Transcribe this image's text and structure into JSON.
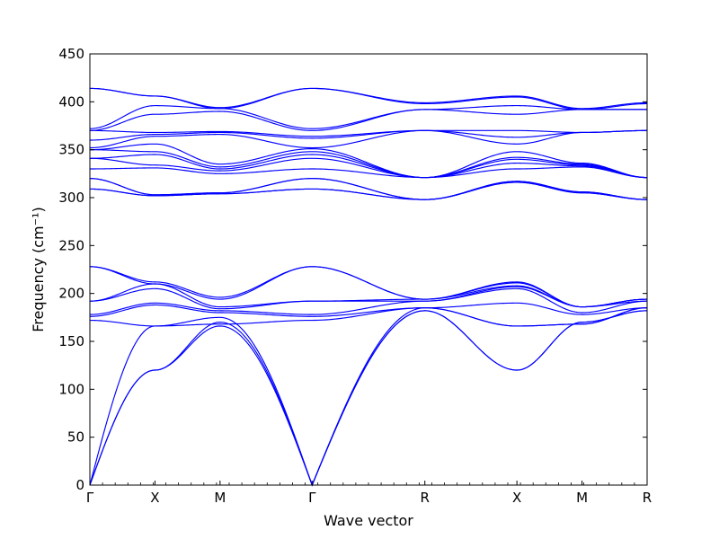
{
  "chart_data": {
    "type": "line",
    "title": "",
    "xlabel": "Wave vector",
    "ylabel": "Frequency (cm⁻¹)",
    "ylim": [
      0,
      450
    ],
    "yticks": [
      0,
      50,
      100,
      150,
      200,
      250,
      300,
      350,
      400,
      450
    ],
    "grid": false,
    "line_color": "#0000ff",
    "path_segments": [
      {
        "from": "Γ",
        "to": "X"
      },
      {
        "from": "X",
        "to": "M"
      },
      {
        "from": "M",
        "to": "Γ"
      },
      {
        "from": "Γ",
        "to": "R"
      },
      {
        "from": "R",
        "to": "X"
      },
      {
        "from": "X",
        "to": "M"
      },
      {
        "from": "M",
        "to": "R"
      }
    ],
    "high_symmetry_points": [
      {
        "label": "Γ",
        "position": 0.0
      },
      {
        "label": "X",
        "position": 1.0
      },
      {
        "label": "M",
        "position": 2.0
      },
      {
        "label": "Γ",
        "position": 3.414
      },
      {
        "label": "R",
        "position": 5.146
      },
      {
        "label": "X",
        "position": 6.56
      },
      {
        "label": "M",
        "position": 7.56
      },
      {
        "label": "R",
        "position": 8.56
      }
    ],
    "x_range": [
      0,
      8.56
    ],
    "series": [
      {
        "values": [
          0,
          120,
          166,
          0,
          182,
          120,
          170,
          182
        ]
      },
      {
        "values": [
          0,
          120,
          170,
          0,
          182,
          120,
          170,
          182
        ]
      },
      {
        "values": [
          0,
          166,
          175,
          0,
          185,
          166,
          168,
          185
        ]
      },
      {
        "values": [
          172,
          166,
          168,
          172,
          185,
          166,
          168,
          185
        ]
      },
      {
        "values": [
          176,
          188,
          180,
          176,
          185,
          190,
          178,
          185
        ]
      },
      {
        "values": [
          178,
          190,
          182,
          178,
          192,
          205,
          180,
          192
        ]
      },
      {
        "values": [
          192,
          205,
          184,
          192,
          192,
          207,
          186,
          192
        ]
      },
      {
        "values": [
          192,
          210,
          186,
          192,
          194,
          208,
          186,
          194
        ]
      },
      {
        "values": [
          228,
          210,
          194,
          228,
          194,
          211,
          186,
          194
        ]
      },
      {
        "values": [
          228,
          212,
          196,
          228,
          194,
          212,
          186,
          194
        ]
      },
      {
        "values": [
          309,
          302,
          304,
          309,
          298,
          316,
          305,
          298
        ]
      },
      {
        "values": [
          309,
          302,
          304,
          309,
          298,
          316,
          305,
          298
        ]
      },
      {
        "values": [
          320,
          303,
          305,
          320,
          298,
          317,
          306,
          298
        ]
      },
      {
        "values": [
          320,
          303,
          305,
          320,
          298,
          317,
          306,
          298
        ]
      },
      {
        "values": [
          330,
          331,
          325,
          330,
          321,
          330,
          332,
          321
        ]
      },
      {
        "values": [
          341,
          334,
          328,
          341,
          321,
          336,
          333,
          321
        ]
      },
      {
        "values": [
          341,
          345,
          330,
          345,
          321,
          340,
          334,
          321
        ]
      },
      {
        "values": [
          350,
          348,
          332,
          348,
          321,
          342,
          335,
          321
        ]
      },
      {
        "values": [
          350,
          356,
          335,
          351,
          321,
          348,
          336,
          321
        ]
      },
      {
        "values": [
          352,
          364,
          366,
          352,
          370,
          356,
          368,
          370
        ]
      },
      {
        "values": [
          360,
          366,
          368,
          362,
          370,
          363,
          368,
          370
        ]
      },
      {
        "values": [
          370,
          368,
          369,
          364,
          370,
          370,
          368,
          370
        ]
      },
      {
        "values": [
          370,
          387,
          390,
          370,
          392,
          387,
          392,
          392
        ]
      },
      {
        "values": [
          372,
          396,
          393,
          372,
          392,
          396,
          392,
          392
        ]
      },
      {
        "values": [
          414,
          406,
          393,
          414,
          398,
          405,
          392,
          398
        ]
      },
      {
        "values": [
          414,
          406,
          394,
          414,
          399,
          406,
          393,
          399
        ]
      }
    ]
  }
}
